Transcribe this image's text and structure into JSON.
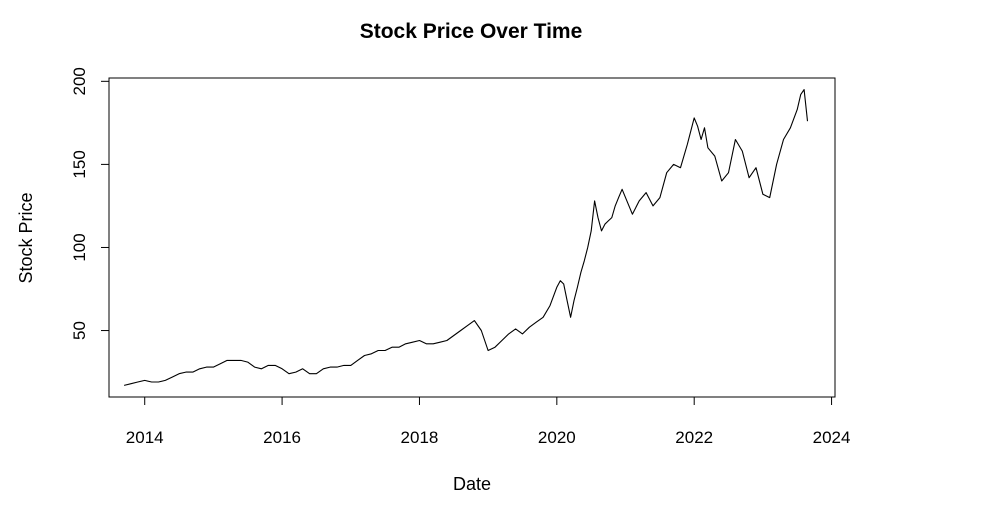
{
  "chart_data": {
    "type": "line",
    "title": "Stock Price Over Time",
    "xlabel": "Date",
    "ylabel": "Stock Price",
    "xlim": [
      2013.48,
      2024.05
    ],
    "ylim": [
      10,
      202
    ],
    "xticks": [
      2014,
      2016,
      2018,
      2020,
      2022,
      2024
    ],
    "yticks": [
      50,
      100,
      150,
      200
    ],
    "grid": false,
    "series": [
      {
        "x": [
          2013.7,
          2013.8,
          2013.9,
          2014.0,
          2014.1,
          2014.2,
          2014.3,
          2014.4,
          2014.5,
          2014.6,
          2014.7,
          2014.8,
          2014.9,
          2015.0,
          2015.1,
          2015.2,
          2015.3,
          2015.4,
          2015.5,
          2015.6,
          2015.7,
          2015.8,
          2015.9,
          2016.0,
          2016.1,
          2016.2,
          2016.3,
          2016.4,
          2016.5,
          2016.6,
          2016.7,
          2016.8,
          2016.9,
          2017.0,
          2017.1,
          2017.2,
          2017.3,
          2017.4,
          2017.5,
          2017.6,
          2017.7,
          2017.8,
          2017.9,
          2018.0,
          2018.1,
          2018.2,
          2018.3,
          2018.4,
          2018.5,
          2018.6,
          2018.7,
          2018.8,
          2018.9,
          2019.0,
          2019.1,
          2019.2,
          2019.3,
          2019.4,
          2019.5,
          2019.6,
          2019.7,
          2019.8,
          2019.9,
          2020.0,
          2020.05,
          2020.1,
          2020.15,
          2020.2,
          2020.25,
          2020.3,
          2020.35,
          2020.4,
          2020.45,
          2020.5,
          2020.55,
          2020.6,
          2020.65,
          2020.7,
          2020.75,
          2020.8,
          2020.85,
          2020.9,
          2020.95,
          2021.0,
          2021.1,
          2021.2,
          2021.3,
          2021.4,
          2021.5,
          2021.6,
          2021.7,
          2021.8,
          2021.9,
          2022.0,
          2022.05,
          2022.1,
          2022.15,
          2022.2,
          2022.3,
          2022.4,
          2022.5,
          2022.6,
          2022.7,
          2022.8,
          2022.9,
          2023.0,
          2023.1,
          2023.2,
          2023.3,
          2023.4,
          2023.5,
          2023.55,
          2023.6,
          2023.65
        ],
        "y": [
          17,
          18,
          19,
          20,
          19,
          19,
          20,
          22,
          24,
          25,
          25,
          27,
          28,
          28,
          30,
          32,
          32,
          32,
          31,
          28,
          27,
          29,
          29,
          27,
          24,
          25,
          27,
          24,
          24,
          27,
          28,
          28,
          29,
          29,
          32,
          35,
          36,
          38,
          38,
          40,
          40,
          42,
          43,
          44,
          42,
          42,
          43,
          44,
          47,
          50,
          53,
          56,
          50,
          38,
          40,
          44,
          48,
          51,
          48,
          52,
          55,
          58,
          65,
          76,
          80,
          78,
          68,
          58,
          68,
          76,
          85,
          92,
          100,
          110,
          128,
          118,
          110,
          114,
          116,
          118,
          125,
          130,
          135,
          130,
          120,
          128,
          133,
          125,
          130,
          145,
          150,
          148,
          162,
          178,
          173,
          165,
          172,
          160,
          155,
          140,
          145,
          165,
          158,
          142,
          148,
          132,
          130,
          150,
          165,
          172,
          183,
          192,
          195,
          176
        ]
      }
    ]
  }
}
